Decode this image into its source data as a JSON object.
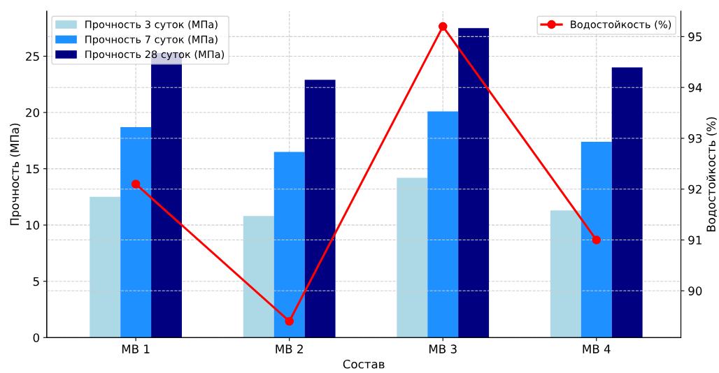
{
  "chart_data": {
    "type": "bar",
    "xlabel": "Состав",
    "ylabel": "Прочность (МПа)",
    "y2label": "Водостойкость (%)",
    "categories": [
      "МВ 1",
      "МВ 2",
      "МВ 3",
      "МВ 4"
    ],
    "series": [
      {
        "name": "Прочность 3 суток (МПа)",
        "color": "#add8e6",
        "values": [
          12.5,
          10.8,
          14.2,
          11.3
        ]
      },
      {
        "name": "Прочность 7 суток (МПа)",
        "color": "#1e90ff",
        "values": [
          18.7,
          16.5,
          20.1,
          17.4
        ]
      },
      {
        "name": "Прочность 28 суток (МПа)",
        "color": "#000080",
        "values": [
          25.3,
          22.9,
          27.5,
          24.0
        ]
      },
      {
        "name": "Водостойкость (%)",
        "type": "line",
        "axis": "y2",
        "color": "#ff0000",
        "marker": "circle",
        "values": [
          92.1,
          89.4,
          95.2,
          91.0
        ]
      }
    ],
    "ylim": [
      0,
      29
    ],
    "yticks": [
      0,
      5,
      10,
      15,
      20,
      25
    ],
    "y2lim": [
      89.08,
      95.5
    ],
    "y2ticks": [
      90,
      91,
      92,
      93,
      94,
      95
    ],
    "grid": true,
    "legend": "top"
  }
}
